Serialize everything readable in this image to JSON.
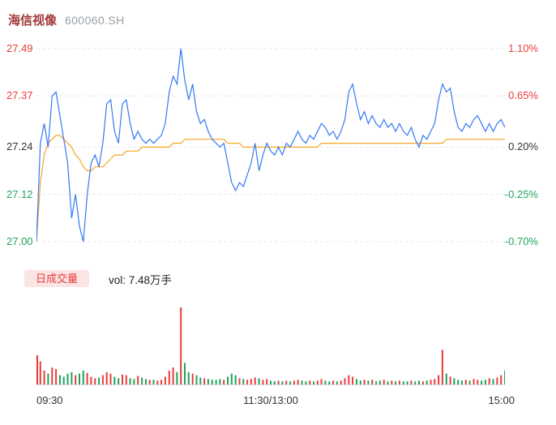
{
  "header": {
    "name": "海信视像",
    "code": "600060.SH"
  },
  "colors": {
    "up": "#e83c3c",
    "down": "#1fa35c",
    "flat_text": "#333333",
    "price_line": "#3478f6",
    "avg_line": "#f5a623",
    "grid": "#e9e9e9",
    "baseline": "#d9d9d9",
    "title": "#a03a3a",
    "code": "#9aa0a6",
    "badge_bg": "#fbe4e4",
    "badge_text": "#e83c3c",
    "vol_text": "#222222",
    "time_text": "#333333",
    "background": "#ffffff"
  },
  "y_axis": {
    "left": [
      {
        "label": "27.49",
        "price": 27.49,
        "color": "#e83c3c"
      },
      {
        "label": "27.37",
        "price": 27.37,
        "color": "#e83c3c"
      },
      {
        "label": "27.24",
        "price": 27.24,
        "color": "#333333"
      },
      {
        "label": "27.12",
        "price": 27.12,
        "color": "#1fa35c"
      },
      {
        "label": "27.00",
        "price": 27.0,
        "color": "#1fa35c"
      }
    ],
    "right": [
      {
        "label": "1.10%",
        "price": 27.49,
        "color": "#e83c3c"
      },
      {
        "label": "0.65%",
        "price": 27.37,
        "color": "#e83c3c"
      },
      {
        "label": "0.20%",
        "price": 27.24,
        "color": "#333333"
      },
      {
        "label": "-0.25%",
        "price": 27.12,
        "color": "#1fa35c"
      },
      {
        "label": "-0.70%",
        "price": 27.0,
        "color": "#1fa35c"
      }
    ]
  },
  "x_axis": {
    "labels": [
      "09:30",
      "11:30/13:00",
      "15:00"
    ]
  },
  "volume_legend": {
    "badge": "日成交量",
    "text": "vol: 7.48万手"
  },
  "chart_data": {
    "type": "line",
    "title": "海信视像 600060.SH 分时走势",
    "x_ticks": [
      "09:30",
      "11:30/13:00",
      "15:00"
    ],
    "x_range": [
      "09:30",
      "15:00"
    ],
    "sample_interval_minutes": 2,
    "ylim": [
      27.0,
      27.49
    ],
    "y_ticks_price": [
      27.49,
      27.37,
      27.24,
      27.12,
      27.0
    ],
    "y_ticks_percent": [
      "1.10%",
      "0.65%",
      "0.20%",
      "-0.25%",
      "-0.70%"
    ],
    "grid": "dashed-horizontal",
    "legend_position": "below-main-panel",
    "series": [
      {
        "name": "price",
        "values": [
          27.0,
          27.25,
          27.3,
          27.24,
          27.37,
          27.38,
          27.32,
          27.26,
          27.2,
          27.06,
          27.12,
          27.04,
          27.0,
          27.12,
          27.2,
          27.22,
          27.19,
          27.25,
          27.35,
          27.36,
          27.28,
          27.25,
          27.35,
          27.36,
          27.3,
          27.26,
          27.28,
          27.26,
          27.25,
          27.26,
          27.25,
          27.26,
          27.27,
          27.3,
          27.38,
          27.42,
          27.4,
          27.49,
          27.41,
          27.36,
          27.4,
          27.33,
          27.3,
          27.31,
          27.28,
          27.26,
          27.25,
          27.24,
          27.25,
          27.2,
          27.15,
          27.13,
          27.15,
          27.14,
          27.17,
          27.2,
          27.25,
          27.18,
          27.22,
          27.25,
          27.23,
          27.22,
          27.24,
          27.22,
          27.25,
          27.24,
          27.26,
          27.28,
          27.26,
          27.25,
          27.27,
          27.26,
          27.28,
          27.3,
          27.29,
          27.27,
          27.28,
          27.26,
          27.28,
          27.31,
          27.38,
          27.4,
          27.35,
          27.31,
          27.33,
          27.3,
          27.32,
          27.3,
          27.29,
          27.31,
          27.29,
          27.3,
          27.28,
          27.3,
          27.28,
          27.27,
          27.29,
          27.26,
          27.24,
          27.27,
          27.26,
          27.28,
          27.3,
          27.36,
          27.4,
          27.38,
          27.39,
          27.33,
          27.29,
          27.28,
          27.3,
          27.29,
          27.31,
          27.32,
          27.3,
          27.28,
          27.3,
          27.28,
          27.3,
          27.31,
          27.29
        ]
      },
      {
        "name": "avg_price",
        "values": [
          27.0,
          27.15,
          27.22,
          27.25,
          27.26,
          27.27,
          27.27,
          27.26,
          27.25,
          27.24,
          27.22,
          27.21,
          27.19,
          27.18,
          27.18,
          27.19,
          27.19,
          27.19,
          27.2,
          27.21,
          27.22,
          27.22,
          27.22,
          27.23,
          27.23,
          27.23,
          27.23,
          27.24,
          27.24,
          27.24,
          27.24,
          27.24,
          27.24,
          27.24,
          27.24,
          27.25,
          27.25,
          27.25,
          27.26,
          27.26,
          27.26,
          27.26,
          27.26,
          27.26,
          27.26,
          27.26,
          27.26,
          27.26,
          27.26,
          27.25,
          27.25,
          27.25,
          27.25,
          27.24,
          27.24,
          27.24,
          27.24,
          27.24,
          27.24,
          27.24,
          27.24,
          27.24,
          27.24,
          27.24,
          27.24,
          27.24,
          27.24,
          27.24,
          27.24,
          27.24,
          27.24,
          27.24,
          27.24,
          27.25,
          27.25,
          27.25,
          27.25,
          27.25,
          27.25,
          27.25,
          27.25,
          27.25,
          27.25,
          27.25,
          27.25,
          27.25,
          27.25,
          27.25,
          27.25,
          27.25,
          27.25,
          27.25,
          27.25,
          27.25,
          27.25,
          27.25,
          27.25,
          27.25,
          27.25,
          27.25,
          27.25,
          27.25,
          27.25,
          27.25,
          27.25,
          27.26,
          27.26,
          27.26,
          27.26,
          27.26,
          27.26,
          27.26,
          27.26,
          27.26,
          27.26,
          27.26,
          27.26,
          27.26,
          27.26,
          27.26,
          27.26
        ]
      }
    ],
    "volume": {
      "total_label": "vol: 7.48万手",
      "color_rule": "red if price >= previous sample, green if lower",
      "values": [
        38,
        30,
        18,
        14,
        22,
        20,
        12,
        10,
        14,
        16,
        12,
        14,
        18,
        15,
        10,
        8,
        9,
        12,
        16,
        14,
        10,
        8,
        13,
        12,
        8,
        7,
        11,
        9,
        7,
        6,
        6,
        5,
        6,
        10,
        18,
        22,
        16,
        100,
        28,
        16,
        14,
        12,
        9,
        8,
        7,
        6,
        6,
        7,
        6,
        10,
        14,
        12,
        8,
        7,
        6,
        7,
        9,
        8,
        6,
        7,
        5,
        4,
        5,
        4,
        5,
        4,
        5,
        6,
        5,
        4,
        5,
        4,
        5,
        7,
        5,
        4,
        5,
        4,
        5,
        8,
        12,
        10,
        7,
        5,
        6,
        5,
        6,
        4,
        5,
        6,
        4,
        5,
        4,
        5,
        4,
        4,
        5,
        4,
        5,
        4,
        5,
        6,
        7,
        12,
        45,
        14,
        10,
        8,
        6,
        5,
        6,
        5,
        7,
        6,
        5,
        6,
        8,
        7,
        9,
        12,
        18
      ]
    }
  }
}
